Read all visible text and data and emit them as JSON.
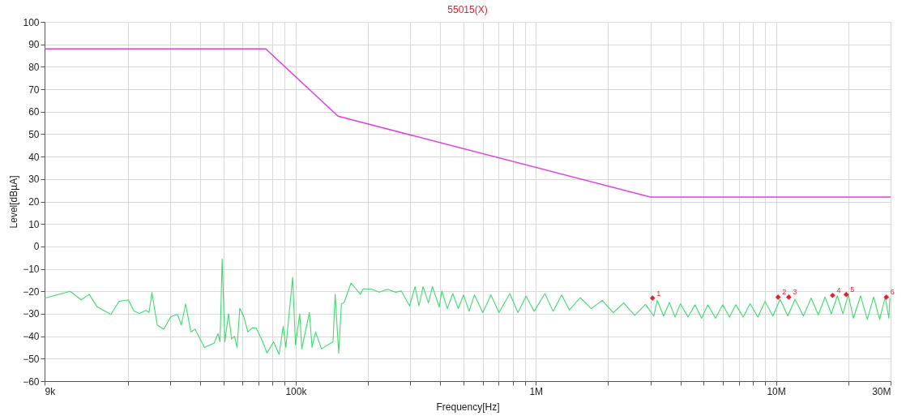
{
  "chart_data": {
    "type": "line",
    "title": "55015(X)",
    "xlabel": "Frequency[Hz]",
    "ylabel": "Level[dBµA]",
    "log": "x",
    "grid": true,
    "xlim": [
      9000,
      30000000
    ],
    "ylim": [
      -60,
      100
    ],
    "xticks": [
      {
        "value": 9000,
        "label": "9k"
      },
      {
        "value": 20000,
        "label": null
      },
      {
        "value": 30000,
        "label": null
      },
      {
        "value": 40000,
        "label": null
      },
      {
        "value": 50000,
        "label": null
      },
      {
        "value": 60000,
        "label": null
      },
      {
        "value": 70000,
        "label": null
      },
      {
        "value": 80000,
        "label": null
      },
      {
        "value": 90000,
        "label": null
      },
      {
        "value": 100000,
        "label": "100k"
      },
      {
        "value": 200000,
        "label": null
      },
      {
        "value": 300000,
        "label": null
      },
      {
        "value": 400000,
        "label": null
      },
      {
        "value": 500000,
        "label": null
      },
      {
        "value": 600000,
        "label": null
      },
      {
        "value": 700000,
        "label": null
      },
      {
        "value": 800000,
        "label": null
      },
      {
        "value": 900000,
        "label": null
      },
      {
        "value": 1000000,
        "label": "1M"
      },
      {
        "value": 2000000,
        "label": null
      },
      {
        "value": 3000000,
        "label": null
      },
      {
        "value": 4000000,
        "label": null
      },
      {
        "value": 5000000,
        "label": null
      },
      {
        "value": 6000000,
        "label": null
      },
      {
        "value": 7000000,
        "label": null
      },
      {
        "value": 8000000,
        "label": null
      },
      {
        "value": 9000000,
        "label": null
      },
      {
        "value": 10000000,
        "label": "10M"
      },
      {
        "value": 20000000,
        "label": null
      },
      {
        "value": 30000000,
        "label": "30M"
      }
    ],
    "yticks": [
      -60,
      -50,
      -40,
      -30,
      -20,
      -10,
      0,
      10,
      20,
      30,
      40,
      50,
      60,
      70,
      80,
      90,
      100
    ],
    "series": [
      {
        "color": "#e040e0",
        "marker": "none",
        "line_style": "solid",
        "x": [
          9000,
          75000,
          150000,
          3000000,
          30000000
        ],
        "values": [
          88,
          88,
          58,
          22,
          22
        ]
      },
      {
        "color": "#3ddc6a",
        "marker": "none",
        "line_style": "solid",
        "x": [
          9000,
          11500,
          12800,
          13800,
          14900,
          17000,
          18400,
          20100,
          21200,
          22300,
          23800,
          24500,
          25200,
          26500,
          28200,
          30200,
          32200,
          33400,
          34800,
          36600,
          38100,
          41700,
          45700,
          47500,
          48400,
          49400,
          50700,
          52500,
          54100,
          55600,
          57000,
          58500,
          60800,
          63200,
          65800,
          68400,
          72900,
          75900,
          80900,
          85300,
          88700,
          91000,
          97100,
          99800,
          104000,
          106000,
          114000,
          117000,
          121000,
          128000,
          143000,
          146000,
          151000,
          155000,
          159000,
          170000,
          186000,
          191000,
          207000,
          223000,
          241000,
          261000,
          275000,
          298000,
          314000,
          326000,
          339000,
          357000,
          371000,
          396000,
          406000,
          428000,
          451000,
          475000,
          500000,
          527000,
          555000,
          601000,
          650000,
          702000,
          779000,
          842000,
          910000,
          984000,
          1090000,
          1180000,
          1280000,
          1380000,
          1530000,
          1700000,
          1890000,
          2100000,
          2320000,
          2580000,
          2860000,
          3100000,
          3200000,
          3400000,
          3600000,
          3800000,
          4000000,
          4300000,
          4600000,
          4900000,
          5200000,
          5600000,
          6000000,
          6400000,
          6800000,
          7300000,
          7800000,
          8400000,
          9000000,
          9700000,
          10400000,
          11200000,
          12000000,
          13000000,
          14000000,
          15000000,
          16000000,
          17000000,
          18000000,
          19000000,
          20000000,
          21000000,
          22500000,
          24000000,
          25500000,
          27000000,
          28500000,
          29500000,
          29800000
        ],
        "values": [
          -23.1,
          -20,
          -23.8,
          -21.3,
          -26.9,
          -30.3,
          -24.4,
          -23.8,
          -28.8,
          -29.8,
          -28.5,
          -29.4,
          -20.6,
          -35,
          -36.9,
          -31.3,
          -30.3,
          -35,
          -25.6,
          -38.1,
          -36.9,
          -45,
          -43.1,
          -38.8,
          -42.5,
          -5.6,
          -42.5,
          -30,
          -41.3,
          -40,
          -45,
          -27.5,
          -31.3,
          -38.1,
          -36.3,
          -36.3,
          -42.5,
          -47.5,
          -42.5,
          -48.1,
          -35.6,
          -45,
          -13.8,
          -43.8,
          -30,
          -45.6,
          -29.4,
          -45,
          -38.1,
          -45.6,
          -42.5,
          -21.3,
          -47.5,
          -25.6,
          -25,
          -16.3,
          -21.3,
          -18.8,
          -19.1,
          -20.4,
          -19.1,
          -20.4,
          -19.8,
          -26.5,
          -17.9,
          -26.5,
          -17.9,
          -25.2,
          -17.9,
          -27.1,
          -19.8,
          -27.7,
          -21,
          -27.7,
          -21.6,
          -28.9,
          -21.6,
          -29.5,
          -21.6,
          -29.5,
          -21,
          -29.5,
          -22.2,
          -28.9,
          -21,
          -28.9,
          -21.6,
          -28.3,
          -22.8,
          -27.7,
          -24,
          -29.5,
          -25.2,
          -30.7,
          -25.8,
          -31,
          -24,
          -31,
          -25,
          -31.5,
          -25.5,
          -31.5,
          -26,
          -32,
          -26,
          -32,
          -26,
          -31.5,
          -26,
          -31.5,
          -25.5,
          -31.5,
          -24.5,
          -31,
          -23.5,
          -31,
          -23.5,
          -31,
          -23,
          -30.5,
          -22.5,
          -30,
          -22,
          -30,
          -21.5,
          -32,
          -22,
          -32.5,
          -22.5,
          -32.5,
          -22.5,
          -32,
          -23
        ]
      },
      {
        "type": "scatter",
        "color": "#e8202a",
        "marker": "diamond",
        "x": [
          3060000,
          10200000,
          11300000,
          17200000,
          19600000,
          28800000
        ],
        "values": [
          -23,
          -22.6,
          -22.6,
          -21.8,
          -21.4,
          -22.6
        ]
      }
    ],
    "annotations": [
      {
        "text": "1",
        "x": 3060000,
        "y": -23
      },
      {
        "text": "2",
        "x": 10200000,
        "y": -22.6
      },
      {
        "text": "3",
        "x": 11300000,
        "y": -22.6
      },
      {
        "text": "4",
        "x": 17200000,
        "y": -21.8
      },
      {
        "text": "5",
        "x": 19600000,
        "y": -21.4
      },
      {
        "text": "6",
        "x": 28800000,
        "y": -22.6
      }
    ]
  }
}
